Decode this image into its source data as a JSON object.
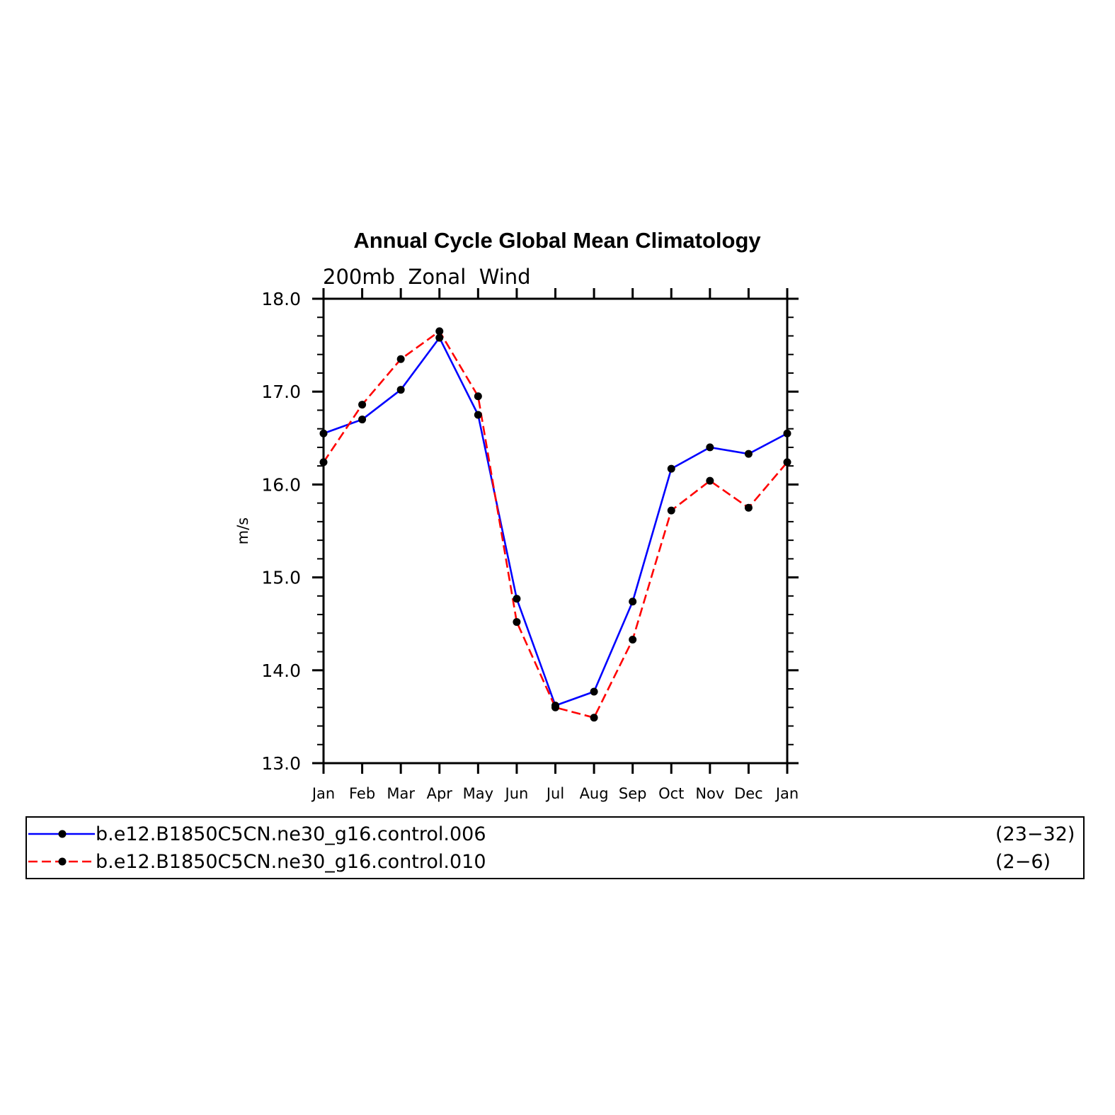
{
  "chart_data": {
    "type": "line",
    "title": "Annual Cycle Global Mean Climatology",
    "subtitle": "200mb  Zonal  Wind",
    "ylabel": "m/s",
    "xlabel": "",
    "categories": [
      "Jan",
      "Feb",
      "Mar",
      "Apr",
      "May",
      "Jun",
      "Jul",
      "Aug",
      "Sep",
      "Oct",
      "Nov",
      "Dec",
      "Jan"
    ],
    "ylim": [
      13.0,
      18.0
    ],
    "yticks": [
      "13.0",
      "14.0",
      "15.0",
      "16.0",
      "17.0",
      "18.0"
    ],
    "grid": false,
    "legend_position": "bottom",
    "series": [
      {
        "name": "b.e12.B1850C5CN.ne30_g16.control.006",
        "years": "(23−32)",
        "color": "#0000ff",
        "dash": "solid",
        "values": [
          16.55,
          16.7,
          17.02,
          17.58,
          16.75,
          14.77,
          13.62,
          13.77,
          14.74,
          16.17,
          16.4,
          16.33,
          16.55
        ]
      },
      {
        "name": "b.e12.B1850C5CN.ne30_g16.control.010",
        "years": "(2−6)",
        "color": "#ff0000",
        "dash": "dashed",
        "values": [
          16.24,
          16.86,
          17.35,
          17.65,
          16.95,
          14.52,
          13.6,
          13.49,
          14.33,
          15.72,
          16.04,
          15.75,
          16.24
        ]
      }
    ],
    "marker_color": "#000000"
  }
}
